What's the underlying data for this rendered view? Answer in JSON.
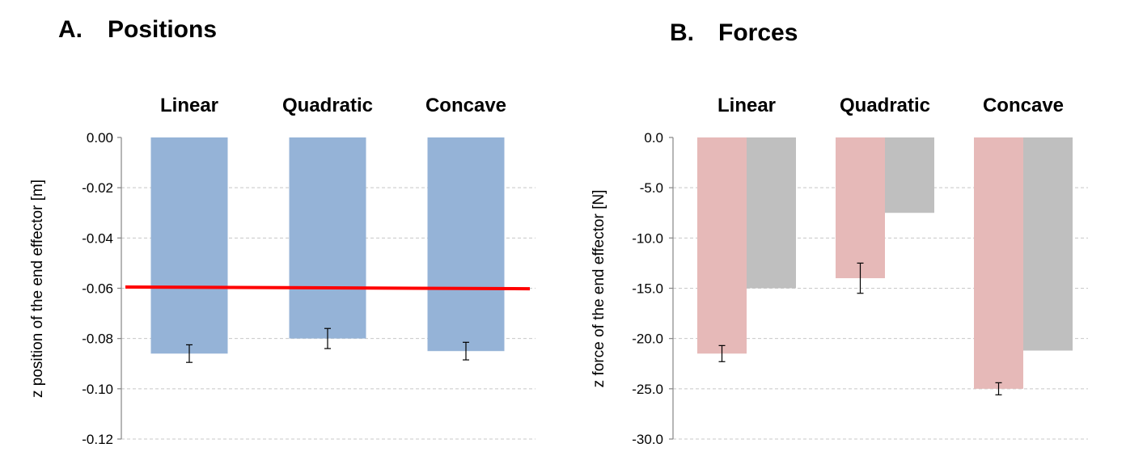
{
  "chart_data": [
    {
      "type": "bar",
      "panel_label": "A.",
      "title": "Positions",
      "ylabel": "z position of the end effector [m]",
      "ylim": [
        -0.12,
        0.0
      ],
      "yticks": [
        "0.00",
        "-0.02",
        "-0.04",
        "-0.06",
        "-0.08",
        "-0.10",
        "-0.12"
      ],
      "categories": [
        "Linear",
        "Quadratic",
        "Concave"
      ],
      "series": [
        {
          "values": [
            -0.086,
            -0.08,
            -0.085
          ],
          "errors": [
            0.0035,
            0.004,
            0.0035
          ],
          "color": "#95b3d7"
        }
      ],
      "reference_line": {
        "y_start": -0.0595,
        "y_end": -0.0602,
        "color": "#ff0000"
      },
      "grid": "horizontal-dashed",
      "category_labels_position": "top"
    },
    {
      "type": "bar",
      "panel_label": "B.",
      "title": "Forces",
      "ylabel": "z force of the end effector [N]",
      "ylim": [
        -30.0,
        0.0
      ],
      "yticks": [
        "0.0",
        "-5.0",
        "-10.0",
        "-15.0",
        "-20.0",
        "-25.0",
        "-30.0"
      ],
      "categories": [
        "Linear",
        "Quadratic",
        "Concave"
      ],
      "series": [
        {
          "values": [
            -21.5,
            -14.0,
            -25.0
          ],
          "errors": [
            0.8,
            1.5,
            0.6
          ],
          "color": "#e6b9b8"
        },
        {
          "values": [
            -15.0,
            -7.5,
            -21.2
          ],
          "errors": null,
          "color": "#bfbfbf"
        }
      ],
      "grid": "horizontal-dashed",
      "category_labels_position": "top"
    }
  ]
}
